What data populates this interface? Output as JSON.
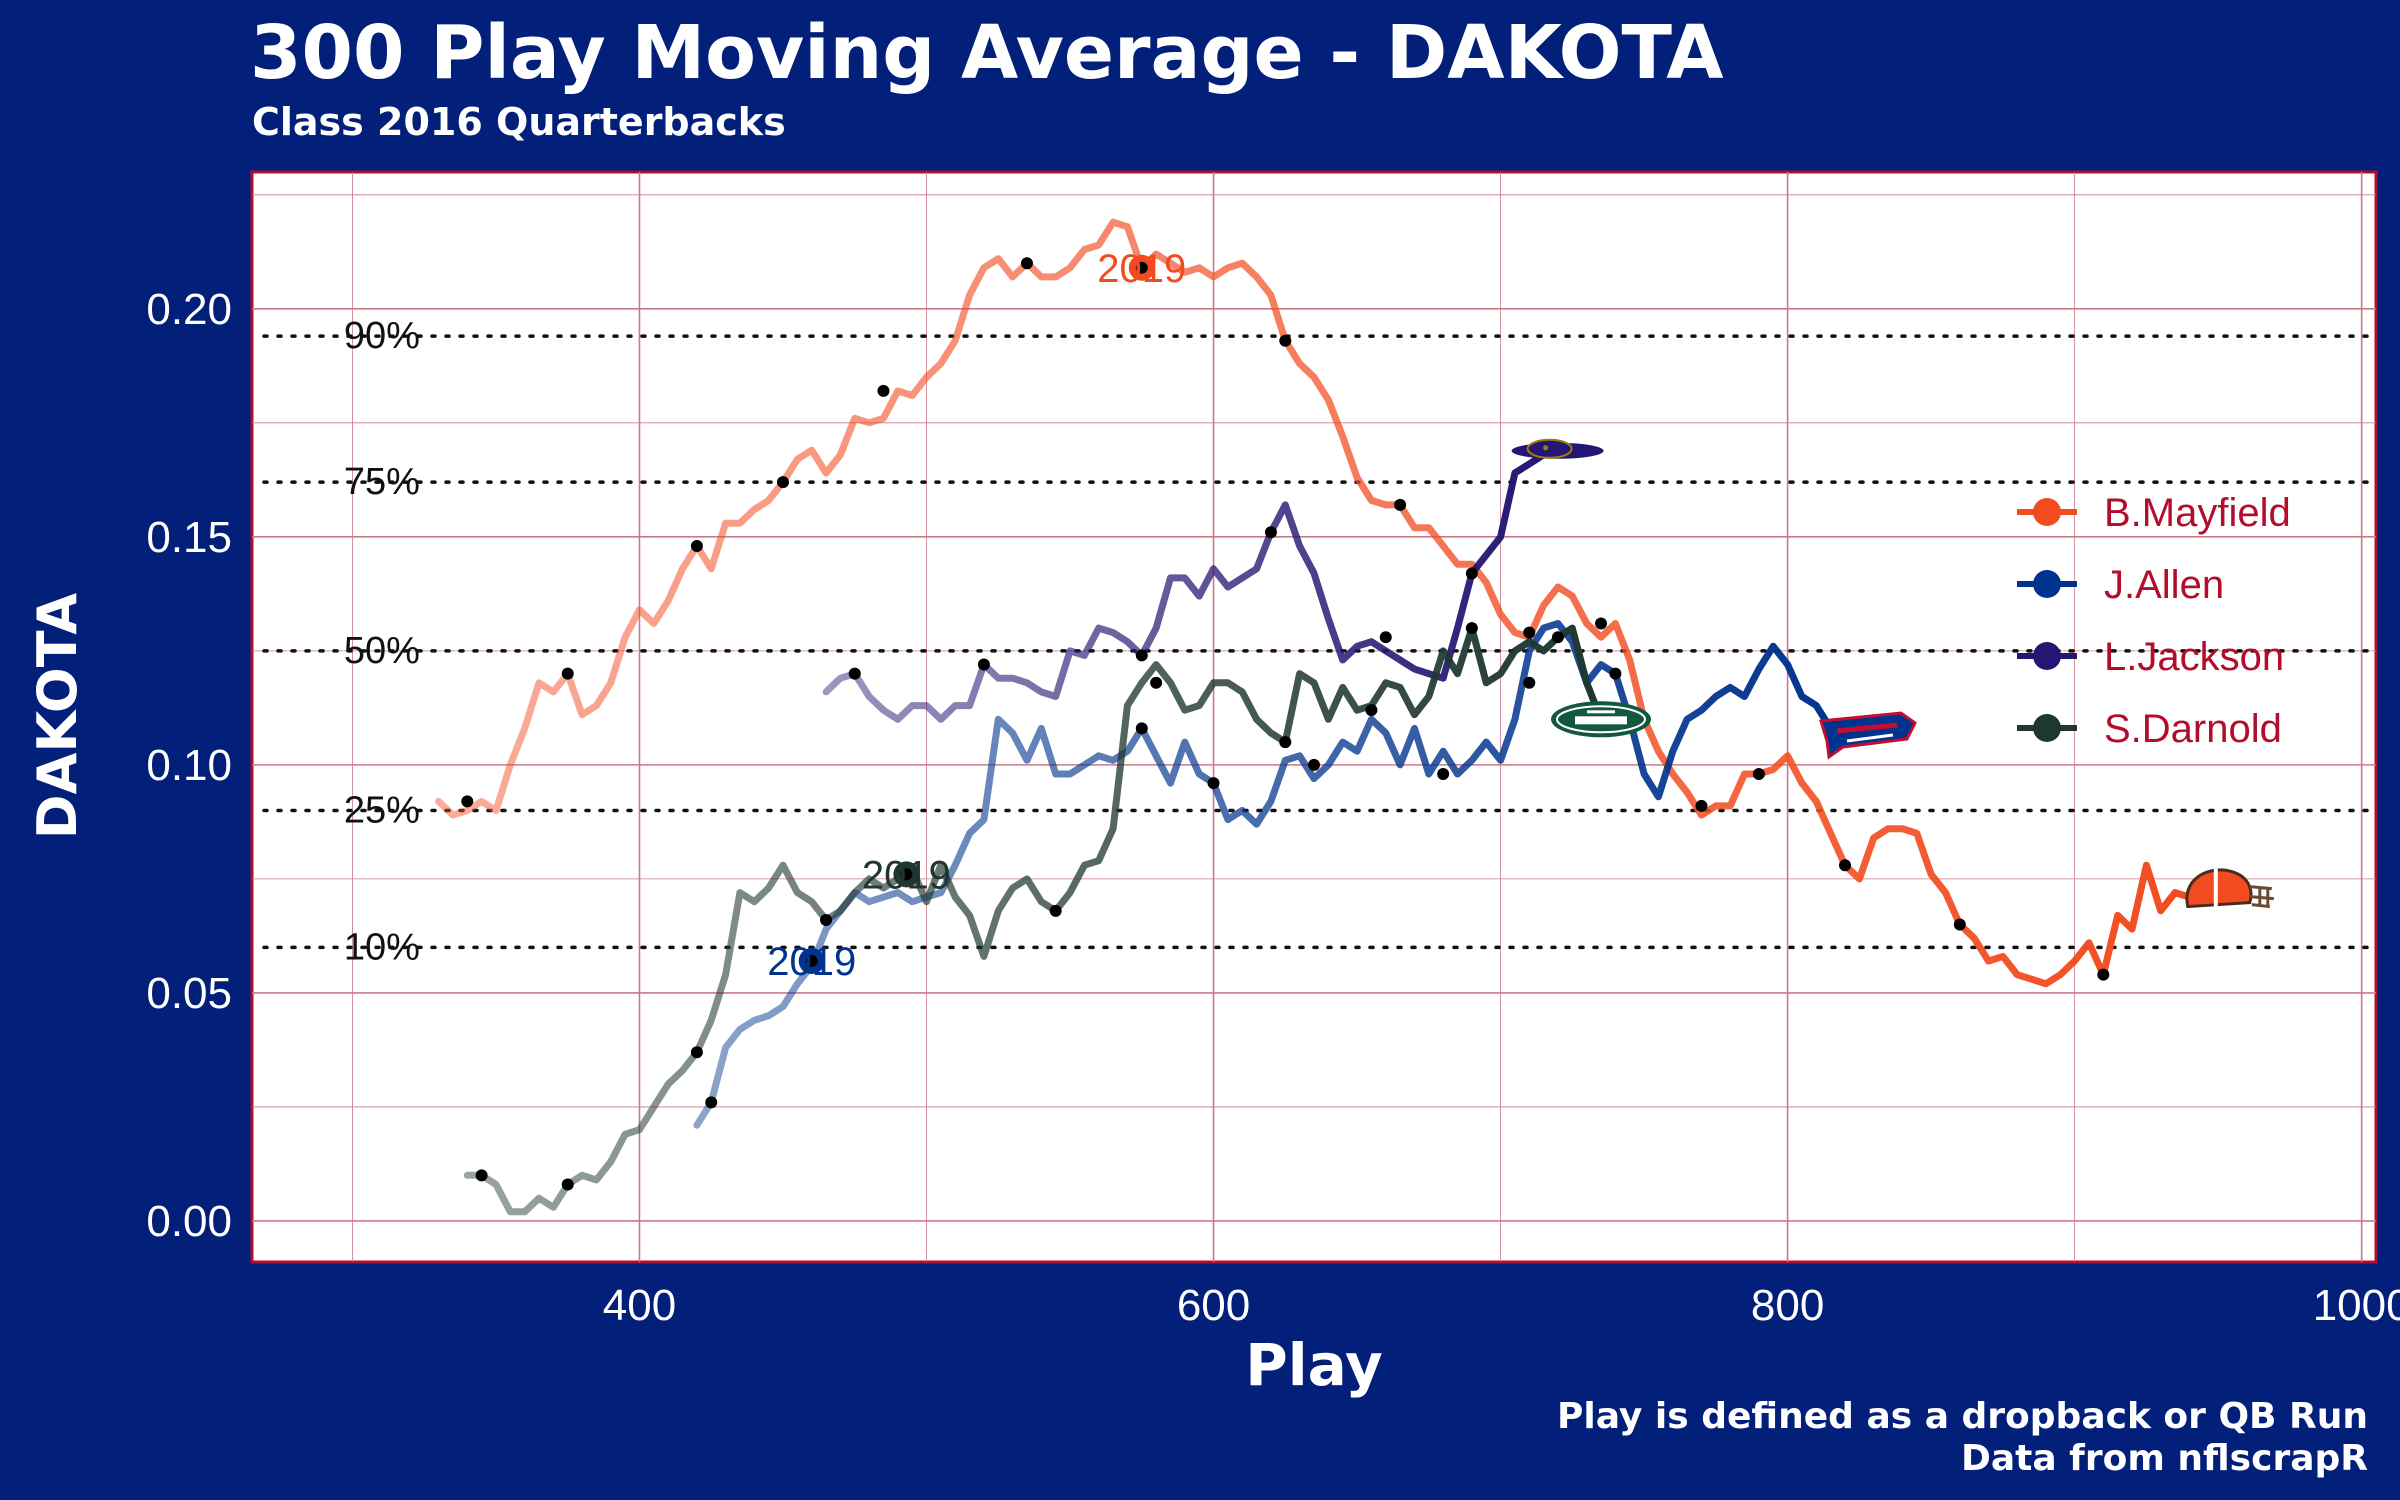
{
  "page": {
    "title": "300 Play Moving Average - DAKOTA",
    "subtitle": "Class 2016 Quarterbacks",
    "caption_line1": "Play is defined as a dropback or QB Run",
    "caption_line2": "Data from nflscrapR"
  },
  "colors": {
    "background": "#021f7a",
    "panel": "#ffffff",
    "panel_border": "#b30d2b",
    "grid": "#c97a87",
    "legend_text": "#b30d2b"
  },
  "chart_data": {
    "type": "line",
    "title": "300 Play Moving Average - DAKOTA",
    "subtitle": "Class 2016 Quarterbacks",
    "xlabel": "Play",
    "ylabel": "DAKOTA",
    "xlim": [
      265,
      1005
    ],
    "ylim": [
      -0.009,
      0.23
    ],
    "x_ticks": [
      400,
      600,
      800,
      1000
    ],
    "x_tick_labels": [
      "400",
      "600",
      "800",
      "1000"
    ],
    "y_ticks": [
      0.0,
      0.05,
      0.1,
      0.15,
      0.2
    ],
    "y_tick_labels": [
      "0.00",
      "0.05",
      "0.10",
      "0.15",
      "0.20"
    ],
    "grid": true,
    "legend_position": "right",
    "percentile_lines": [
      {
        "label": "90%",
        "y": 0.194
      },
      {
        "label": "75%",
        "y": 0.162
      },
      {
        "label": "50%",
        "y": 0.125
      },
      {
        "label": "25%",
        "y": 0.09
      },
      {
        "label": "10%",
        "y": 0.06
      }
    ],
    "series": [
      {
        "name": "B.Mayfield",
        "color": "#f24b1f",
        "logo": "browns-helmet-icon",
        "x": [
          330,
          335,
          340,
          345,
          350,
          355,
          360,
          365,
          370,
          375,
          380,
          385,
          390,
          395,
          400,
          405,
          410,
          415,
          420,
          425,
          430,
          435,
          440,
          445,
          450,
          455,
          460,
          465,
          470,
          475,
          480,
          485,
          490,
          495,
          500,
          505,
          510,
          515,
          520,
          525,
          530,
          535,
          540,
          545,
          550,
          555,
          560,
          565,
          570,
          575,
          580,
          585,
          590,
          595,
          600,
          605,
          610,
          615,
          620,
          625,
          630,
          635,
          640,
          645,
          650,
          655,
          660,
          665,
          670,
          675,
          680,
          685,
          690,
          695,
          700,
          705,
          710,
          715,
          720,
          725,
          730,
          735,
          740,
          745,
          750,
          755,
          760,
          765,
          770,
          775,
          780,
          785,
          790,
          795,
          800,
          805,
          810,
          815,
          820,
          825,
          830,
          835,
          840,
          845,
          850,
          855,
          860,
          865,
          870,
          875,
          880,
          885,
          890,
          895,
          900,
          905,
          910,
          915,
          920,
          925,
          930,
          935,
          940,
          945
        ],
        "y": [
          0.092,
          0.089,
          0.09,
          0.092,
          0.09,
          0.1,
          0.108,
          0.118,
          0.116,
          0.12,
          0.111,
          0.113,
          0.118,
          0.128,
          0.134,
          0.131,
          0.136,
          0.143,
          0.148,
          0.143,
          0.153,
          0.153,
          0.156,
          0.158,
          0.162,
          0.167,
          0.169,
          0.164,
          0.168,
          0.176,
          0.175,
          0.176,
          0.182,
          0.181,
          0.185,
          0.188,
          0.193,
          0.203,
          0.209,
          0.211,
          0.207,
          0.21,
          0.207,
          0.207,
          0.209,
          0.213,
          0.214,
          0.219,
          0.218,
          0.209,
          0.212,
          0.21,
          0.208,
          0.209,
          0.207,
          0.209,
          0.21,
          0.207,
          0.203,
          0.193,
          0.188,
          0.185,
          0.18,
          0.172,
          0.163,
          0.158,
          0.157,
          0.157,
          0.152,
          0.152,
          0.148,
          0.144,
          0.144,
          0.14,
          0.133,
          0.129,
          0.128,
          0.135,
          0.139,
          0.137,
          0.131,
          0.128,
          0.131,
          0.123,
          0.11,
          0.103,
          0.098,
          0.094,
          0.089,
          0.091,
          0.091,
          0.098,
          0.098,
          0.099,
          0.102,
          0.096,
          0.092,
          0.085,
          0.078,
          0.075,
          0.084,
          0.086,
          0.086,
          0.085,
          0.076,
          0.072,
          0.065,
          0.062,
          0.057,
          0.058,
          0.054,
          0.053,
          0.052,
          0.054,
          0.057,
          0.061,
          0.054,
          0.067,
          0.064,
          0.078,
          0.068,
          0.072,
          0.071,
          0.072
        ],
        "marker_x": [
          340,
          375,
          420,
          450,
          485,
          535,
          575,
          625,
          665,
          710,
          735,
          770,
          790,
          820,
          860,
          910
        ],
        "marker_y": [
          0.092,
          0.12,
          0.148,
          0.162,
          0.182,
          0.21,
          0.209,
          0.193,
          0.157,
          0.129,
          0.131,
          0.091,
          0.098,
          0.078,
          0.065,
          0.054
        ],
        "season_label": "2019",
        "season_x": 575,
        "season_y": 0.209
      },
      {
        "name": "J.Allen",
        "color": "#00338d",
        "logo": "bills-logo-icon",
        "x": [
          420,
          425,
          430,
          435,
          440,
          445,
          450,
          455,
          460,
          465,
          470,
          475,
          480,
          485,
          490,
          495,
          500,
          505,
          510,
          515,
          520,
          525,
          530,
          535,
          540,
          545,
          550,
          555,
          560,
          565,
          570,
          575,
          580,
          585,
          590,
          595,
          600,
          605,
          610,
          615,
          620,
          625,
          630,
          635,
          640,
          645,
          650,
          655,
          660,
          665,
          670,
          675,
          680,
          685,
          690,
          695,
          700,
          705,
          710,
          715,
          720,
          725,
          730,
          735,
          740,
          745,
          750,
          755,
          760,
          765,
          770,
          775,
          780,
          785,
          790,
          795,
          800,
          805,
          810,
          815,
          820
        ],
        "y": [
          0.021,
          0.026,
          0.038,
          0.042,
          0.044,
          0.045,
          0.047,
          0.052,
          0.056,
          0.064,
          0.068,
          0.072,
          0.07,
          0.071,
          0.072,
          0.07,
          0.071,
          0.072,
          0.078,
          0.085,
          0.088,
          0.11,
          0.107,
          0.101,
          0.108,
          0.098,
          0.098,
          0.1,
          0.102,
          0.101,
          0.103,
          0.108,
          0.102,
          0.096,
          0.105,
          0.098,
          0.096,
          0.088,
          0.09,
          0.087,
          0.092,
          0.101,
          0.102,
          0.097,
          0.1,
          0.105,
          0.103,
          0.11,
          0.107,
          0.1,
          0.108,
          0.098,
          0.103,
          0.098,
          0.101,
          0.105,
          0.101,
          0.11,
          0.125,
          0.13,
          0.131,
          0.127,
          0.118,
          0.122,
          0.12,
          0.11,
          0.098,
          0.093,
          0.103,
          0.11,
          0.112,
          0.115,
          0.117,
          0.115,
          0.121,
          0.126,
          0.122,
          0.115,
          0.113,
          0.108,
          0.107
        ],
        "marker_x": [
          425,
          460,
          575,
          600,
          635,
          680,
          710,
          740
        ],
        "marker_y": [
          0.026,
          0.056,
          0.108,
          0.096,
          0.1,
          0.098,
          0.118,
          0.12
        ],
        "season_label": "2019",
        "season_x": 460,
        "season_y": 0.057
      },
      {
        "name": "L.Jackson",
        "color": "#241773",
        "logo": "ravens-logo-icon",
        "x": [
          465,
          470,
          475,
          480,
          485,
          490,
          495,
          500,
          505,
          510,
          515,
          520,
          525,
          530,
          535,
          540,
          545,
          550,
          555,
          560,
          565,
          570,
          575,
          580,
          585,
          590,
          595,
          600,
          605,
          610,
          615,
          620,
          625,
          630,
          635,
          640,
          645,
          650,
          655,
          660,
          665,
          670,
          675,
          680,
          685,
          690,
          695,
          700,
          705,
          710,
          715
        ],
        "y": [
          0.116,
          0.119,
          0.12,
          0.115,
          0.112,
          0.11,
          0.113,
          0.113,
          0.11,
          0.113,
          0.113,
          0.122,
          0.119,
          0.119,
          0.118,
          0.116,
          0.115,
          0.125,
          0.124,
          0.13,
          0.129,
          0.127,
          0.124,
          0.13,
          0.141,
          0.141,
          0.137,
          0.143,
          0.139,
          0.141,
          0.143,
          0.151,
          0.157,
          0.148,
          0.142,
          0.132,
          0.123,
          0.126,
          0.127,
          0.125,
          0.123,
          0.121,
          0.12,
          0.119,
          0.13,
          0.142,
          0.146,
          0.15,
          0.164,
          0.166,
          0.168
        ],
        "marker_x": [
          475,
          520,
          575,
          620,
          660,
          690
        ],
        "marker_y": [
          0.12,
          0.122,
          0.124,
          0.151,
          0.128,
          0.142
        ],
        "season_label": "",
        "season_x": null,
        "season_y": null
      },
      {
        "name": "S.Darnold",
        "color": "#203731",
        "logo": "jets-logo-icon",
        "x": [
          340,
          345,
          350,
          355,
          360,
          365,
          370,
          375,
          380,
          385,
          390,
          395,
          400,
          405,
          410,
          415,
          420,
          425,
          430,
          435,
          440,
          445,
          450,
          455,
          460,
          465,
          470,
          475,
          480,
          485,
          490,
          495,
          500,
          505,
          510,
          515,
          520,
          525,
          530,
          535,
          540,
          545,
          550,
          555,
          560,
          565,
          570,
          575,
          580,
          585,
          590,
          595,
          600,
          605,
          610,
          615,
          620,
          625,
          630,
          635,
          640,
          645,
          650,
          655,
          660,
          665,
          670,
          675,
          680,
          685,
          690,
          695,
          700,
          705,
          710,
          715,
          720,
          725,
          730,
          735
        ],
        "y": [
          0.01,
          0.01,
          0.008,
          0.002,
          0.002,
          0.005,
          0.003,
          0.008,
          0.01,
          0.009,
          0.013,
          0.019,
          0.02,
          0.025,
          0.03,
          0.033,
          0.037,
          0.044,
          0.054,
          0.072,
          0.07,
          0.073,
          0.078,
          0.072,
          0.07,
          0.066,
          0.068,
          0.072,
          0.075,
          0.073,
          0.075,
          0.077,
          0.07,
          0.078,
          0.071,
          0.067,
          0.058,
          0.068,
          0.073,
          0.075,
          0.07,
          0.068,
          0.072,
          0.078,
          0.079,
          0.086,
          0.113,
          0.118,
          0.122,
          0.118,
          0.112,
          0.113,
          0.118,
          0.118,
          0.116,
          0.11,
          0.107,
          0.105,
          0.12,
          0.118,
          0.11,
          0.117,
          0.112,
          0.113,
          0.118,
          0.117,
          0.111,
          0.115,
          0.125,
          0.12,
          0.13,
          0.118,
          0.12,
          0.125,
          0.127,
          0.125,
          0.128,
          0.13,
          0.118,
          0.11
        ],
        "marker_x": [
          345,
          375,
          420,
          465,
          545,
          580,
          625,
          655,
          690,
          720
        ],
        "marker_y": [
          0.01,
          0.008,
          0.037,
          0.066,
          0.068,
          0.118,
          0.105,
          0.112,
          0.13,
          0.128
        ],
        "season_label": "2019",
        "season_x": 493,
        "season_y": 0.076
      }
    ]
  }
}
